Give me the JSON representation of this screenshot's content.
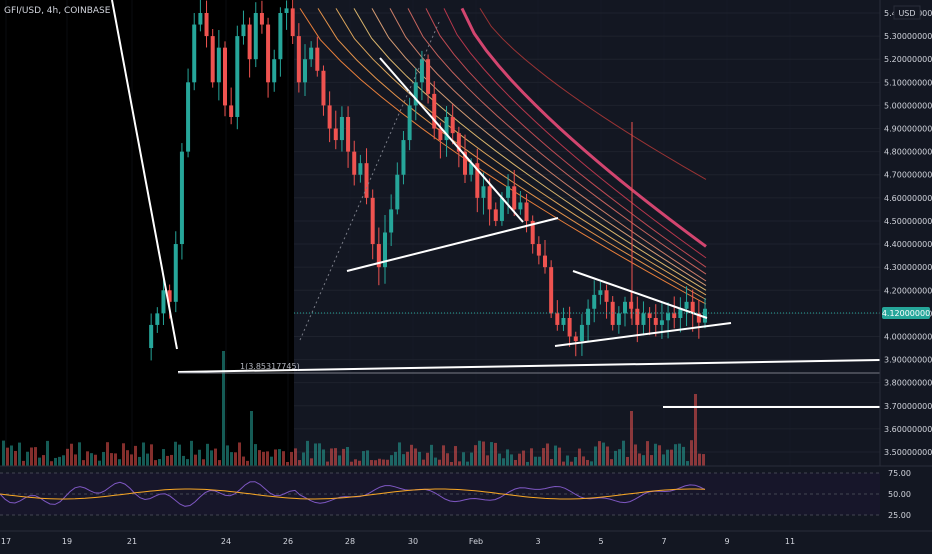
{
  "header": {
    "symbol_label": "GFI/USD, 4h, COINBASE"
  },
  "colors": {
    "bg": "#131722",
    "black_region": "#000000",
    "up": "#26a69a",
    "down": "#ef5350",
    "grid": "#1e222d",
    "text": "#d1d4dc",
    "price_tag": "#26a69a"
  },
  "price_axis": {
    "unit_label": "USD",
    "ticks": [
      "5.40000000",
      "5.30000000",
      "5.20000000",
      "5.10000000",
      "5.00000000",
      "4.90000000",
      "4.80000000",
      "4.70000000",
      "4.60000000",
      "4.50000000",
      "4.40000000",
      "4.30000000",
      "4.20000000",
      "4.10000000",
      "4.00000000",
      "3.90000000",
      "3.80000000",
      "3.70000000",
      "3.60000000",
      "3.50000000"
    ],
    "current_price_label": "4.12000000"
  },
  "annotation": {
    "fib_label": "1(3.85317745)"
  },
  "rsi_axis": {
    "ticks": [
      "75.00",
      "50.00",
      "25.00"
    ]
  },
  "time_axis": {
    "ticks": [
      "17",
      "19",
      "21",
      "24",
      "26",
      "28",
      "30",
      "Feb",
      "3",
      "5",
      "7",
      "9",
      "11"
    ]
  },
  "chart_data": {
    "type": "candlestick",
    "symbol": "GFI/USD",
    "interval": "4h",
    "exchange": "COINBASE",
    "x": [
      "17",
      "19",
      "21",
      "24",
      "26",
      "28",
      "30",
      "Feb",
      "3",
      "5",
      "7",
      "9",
      "11"
    ],
    "ylim": [
      3.46,
      5.44
    ],
    "current_price": 4.12,
    "levels": [
      3.85317745,
      3.9,
      3.7
    ],
    "price_path": [
      3.95,
      4.05,
      4.1,
      4.2,
      4.15,
      4.4,
      4.8,
      5.1,
      5.35,
      5.4,
      5.3,
      5.1,
      5.25,
      5.0,
      4.95,
      5.3,
      5.35,
      5.2,
      5.4,
      5.35,
      5.1,
      5.2,
      5.4,
      5.42,
      5.3,
      5.1,
      5.2,
      5.25,
      5.15,
      5.0,
      4.9,
      4.85,
      4.95,
      4.8,
      4.7,
      4.75,
      4.6,
      4.4,
      4.3,
      4.45,
      4.55,
      4.7,
      4.85,
      5.0,
      5.1,
      5.2,
      5.05,
      4.9,
      4.85,
      4.95,
      4.88,
      4.8,
      4.7,
      4.75,
      4.6,
      4.65,
      4.55,
      4.5,
      4.6,
      4.65,
      4.55,
      4.58,
      4.5,
      4.4,
      4.35,
      4.3,
      4.1,
      4.05,
      4.08,
      4.0,
      3.98,
      4.05,
      4.12,
      4.18,
      4.2,
      4.15,
      4.05,
      4.1,
      4.15,
      4.12,
      4.05,
      4.1,
      4.08,
      4.05,
      4.07,
      4.1,
      4.08,
      4.12,
      4.15,
      4.1,
      4.06,
      4.12
    ],
    "emas": [
      {
        "color": "#ff8a3d",
        "end": 4.14
      },
      {
        "color": "#f9a04f",
        "end": 4.16
      },
      {
        "color": "#f3b562",
        "end": 4.18
      },
      {
        "color": "#eec574",
        "end": 4.2
      },
      {
        "color": "#e8a87c",
        "end": 4.22
      },
      {
        "color": "#e08a70",
        "end": 4.24
      },
      {
        "color": "#d86c64",
        "end": 4.27
      },
      {
        "color": "#d05058",
        "end": 4.3
      },
      {
        "color": "#c83a50",
        "end": 4.34
      },
      {
        "color": "#e84a78",
        "end": 4.39
      },
      {
        "color": "#a83636",
        "end": 4.68
      }
    ],
    "rsi": {
      "overbought": 75,
      "middle": 50,
      "oversold": 25
    }
  }
}
